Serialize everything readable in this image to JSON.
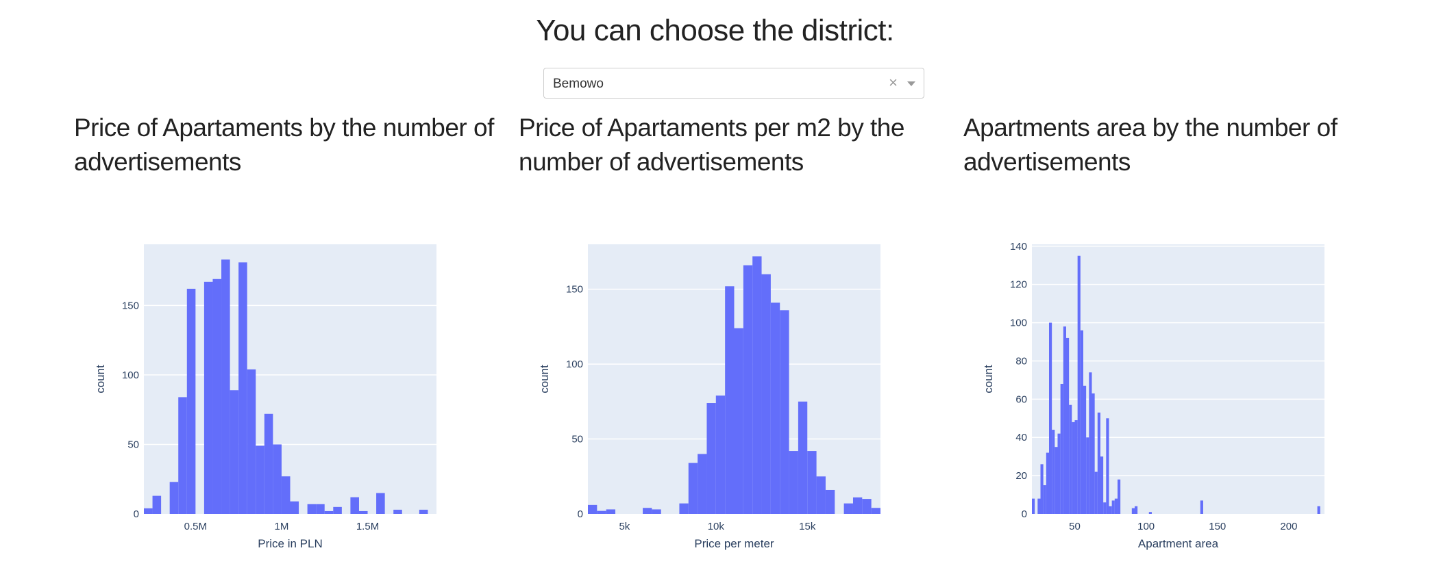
{
  "header": {
    "title": "You can choose the district:"
  },
  "dropdown": {
    "selected": "Bemowo",
    "clear_symbol": "×"
  },
  "sections": [
    {
      "title": "Price of Apartaments by the number of advertisements"
    },
    {
      "title": "Price of Apartaments per m2 by the number of advertisements"
    },
    {
      "title": "Apartments area by the number of advertisements"
    }
  ],
  "colors": {
    "bar": "#636efa",
    "plot_bg": "#e5ecf6",
    "grid": "#ffffff",
    "text": "#2a3f5f"
  },
  "chart_data": [
    {
      "type": "bar",
      "xlabel": "Price in PLN",
      "ylabel": "count",
      "xlim": [
        200000,
        1900000
      ],
      "ylim": [
        0,
        194
      ],
      "xticks": [
        500000,
        1000000,
        1500000
      ],
      "xtick_labels": [
        "0.5M",
        "1M",
        "1.5M"
      ],
      "yticks": [
        0,
        50,
        100,
        150
      ],
      "bin_width": 50000,
      "bin_start": 200000,
      "values": [
        4,
        13,
        0,
        23,
        84,
        162,
        0,
        167,
        169,
        183,
        89,
        181,
        104,
        49,
        72,
        50,
        27,
        9,
        0,
        7,
        7,
        2,
        5,
        0,
        12,
        2,
        0,
        15,
        0,
        3,
        0,
        0,
        3,
        0
      ]
    },
    {
      "type": "bar",
      "xlabel": "Price per meter",
      "ylabel": "count",
      "xlim": [
        3000,
        19000
      ],
      "ylim": [
        0,
        180
      ],
      "xticks": [
        5000,
        10000,
        15000
      ],
      "xtick_labels": [
        "5k",
        "10k",
        "15k"
      ],
      "yticks": [
        0,
        50,
        100,
        150
      ],
      "bin_width": 500,
      "bin_start": 3000,
      "values": [
        6,
        2,
        3,
        0,
        0,
        0,
        4,
        3,
        0,
        0,
        7,
        34,
        40,
        74,
        79,
        152,
        124,
        166,
        172,
        160,
        141,
        136,
        42,
        75,
        42,
        25,
        16,
        0,
        7,
        11,
        10,
        4
      ]
    },
    {
      "type": "bar",
      "xlabel": "Apartment area",
      "ylabel": "count",
      "xlim": [
        20,
        225
      ],
      "ylim": [
        0,
        141
      ],
      "xticks": [
        50,
        100,
        150,
        200
      ],
      "xtick_labels": [
        "50",
        "100",
        "150",
        "200"
      ],
      "yticks": [
        0,
        20,
        40,
        60,
        80,
        100,
        120,
        140
      ],
      "yonly_labels_from": 20,
      "bin_width": 2,
      "bin_start": 20,
      "values": [
        8,
        0,
        8,
        26,
        15,
        32,
        100,
        44,
        35,
        42,
        68,
        98,
        92,
        57,
        48,
        49,
        135,
        96,
        67,
        40,
        74,
        63,
        22,
        53,
        30,
        6,
        50,
        4,
        7,
        8,
        18,
        0,
        0,
        0,
        0,
        3,
        4,
        0,
        0,
        0,
        0,
        1,
        0,
        0,
        0,
        0,
        0,
        0,
        0,
        0,
        0,
        0,
        0,
        0,
        0,
        0,
        0,
        0,
        0,
        7,
        0,
        0,
        0,
        0,
        0,
        0,
        0,
        0,
        0,
        0,
        0,
        0,
        0,
        0,
        0,
        0,
        0,
        0,
        0,
        0,
        0,
        0,
        0,
        0,
        0,
        0,
        0,
        0,
        0,
        0,
        0,
        0,
        0,
        0,
        0,
        0,
        0,
        0,
        0,
        0,
        4
      ]
    }
  ]
}
